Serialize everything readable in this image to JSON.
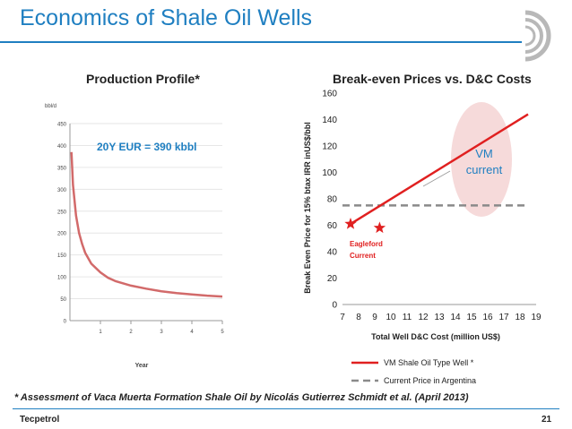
{
  "slide": {
    "title": "Economics of Shale Oil Wells",
    "footnote": "* Assessment of Vaca Muerta Formation Shale Oil by Nicolás Gutierrez Schmidt et al. (April 2013)",
    "brand": "Tecpetrol",
    "page_number": "21",
    "colors": {
      "title": "#1f7fc1",
      "series": "#e02020",
      "dash": "#808080"
    }
  },
  "chart_data": [
    {
      "type": "line",
      "title": "Production Profile*",
      "ylabel": "bbl/d",
      "xlabel": "Year",
      "ylim": [
        0,
        450
      ],
      "xlim": [
        0,
        5
      ],
      "yticks": [
        0,
        50,
        100,
        150,
        200,
        250,
        300,
        350,
        400,
        450
      ],
      "xticks": [
        1,
        2,
        3,
        4,
        5
      ],
      "annotation": "20Y EUR = 390 kbbl",
      "series": [
        {
          "x": [
            0.05,
            0.1,
            0.2,
            0.3,
            0.4,
            0.5,
            0.7,
            1.0,
            1.25,
            1.5,
            2.0,
            2.5,
            3.0,
            3.5,
            4.0,
            4.5,
            5.0
          ],
          "values": [
            385,
            310,
            240,
            200,
            175,
            155,
            130,
            110,
            98,
            90,
            80,
            73,
            67,
            63,
            60,
            57,
            55
          ]
        }
      ]
    },
    {
      "type": "line",
      "title": "Break-even Prices vs. D&C Costs",
      "xlabel": "Total Well D&C Cost (million US$)",
      "ylabel": "Break Even Price for 15% btax IRR inUS$/bbl",
      "xlim": [
        7,
        19
      ],
      "ylim": [
        0,
        160
      ],
      "xticks": [
        7,
        8,
        9,
        10,
        11,
        12,
        13,
        14,
        15,
        16,
        17,
        18,
        19
      ],
      "yticks": [
        0,
        20,
        40,
        60,
        80,
        100,
        120,
        140,
        160
      ],
      "series": [
        {
          "name": "VM Shale Oil Type Well *",
          "x": [
            7.5,
            18.5
          ],
          "values": [
            61,
            144
          ]
        },
        {
          "name": "Current Price in Argentina",
          "x": [
            7,
            18.5
          ],
          "values": [
            75,
            75
          ]
        }
      ],
      "markers": [
        {
          "x": 7.5,
          "y": 61
        },
        {
          "x": 9.3,
          "y": 58
        }
      ],
      "annotations": {
        "vm_current": [
          "VM",
          "current"
        ],
        "eagleford_current": [
          "Eagleford",
          "Current"
        ]
      },
      "legend": "bottom"
    }
  ]
}
